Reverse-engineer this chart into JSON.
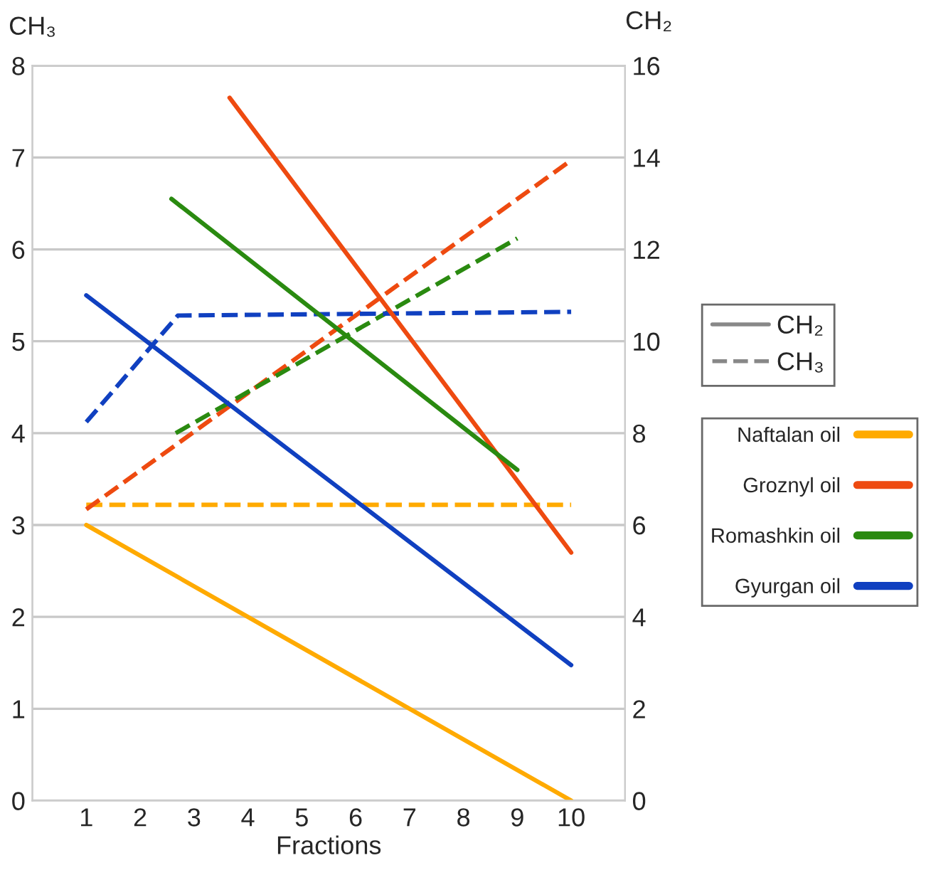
{
  "chart_data": {
    "type": "line",
    "xlabel": "Fractions",
    "ylabel": "CH₃",
    "y2label": "CH₂",
    "xlim": [
      0,
      11
    ],
    "xticks": [
      1,
      2,
      3,
      4,
      5,
      6,
      7,
      8,
      9,
      10
    ],
    "ylim": [
      0,
      8
    ],
    "yticks": [
      0,
      1,
      2,
      3,
      4,
      5,
      6,
      7,
      8
    ],
    "y2lim": [
      0,
      16
    ],
    "y2ticks": [
      0,
      2,
      4,
      6,
      8,
      10,
      12,
      14,
      16
    ],
    "grid": "y",
    "legend": "right",
    "marker": "none",
    "series": [
      {
        "name": "Naftalan oil",
        "color": "#ffaa00",
        "axis": "y2",
        "line_style": "solid",
        "x": [
          1,
          10
        ],
        "values": [
          6.0,
          0.0
        ]
      },
      {
        "name": "Groznyl oil",
        "color": "#ee4a10",
        "axis": "y2",
        "line_style": "solid",
        "x": [
          3.66,
          10
        ],
        "values": [
          15.3,
          5.4
        ]
      },
      {
        "name": "Romashkin oil",
        "color": "#2a8a10",
        "axis": "y2",
        "line_style": "solid",
        "x": [
          2.58,
          9
        ],
        "values": [
          13.1,
          7.2
        ]
      },
      {
        "name": "Gyurgan oil",
        "color": "#1040c0",
        "axis": "y2",
        "line_style": "solid",
        "x": [
          1,
          10
        ],
        "values": [
          11.0,
          2.95
        ]
      },
      {
        "color": "#ffaa00",
        "axis": "y",
        "line_style": "dashed",
        "x": [
          1,
          10
        ],
        "values": [
          3.22,
          3.22
        ]
      },
      {
        "color": "#ee4a10",
        "axis": "y",
        "line_style": "dashed",
        "x": [
          1,
          10
        ],
        "values": [
          3.17,
          6.97
        ]
      },
      {
        "color": "#2a8a10",
        "axis": "y",
        "line_style": "dashed",
        "x": [
          2.66,
          9
        ],
        "values": [
          4.0,
          6.12
        ]
      },
      {
        "color": "#1040c0",
        "axis": "y",
        "line_style": "dashed",
        "x": [
          1,
          2.7,
          10
        ],
        "values": [
          4.12,
          5.28,
          5.32
        ]
      }
    ]
  }
}
